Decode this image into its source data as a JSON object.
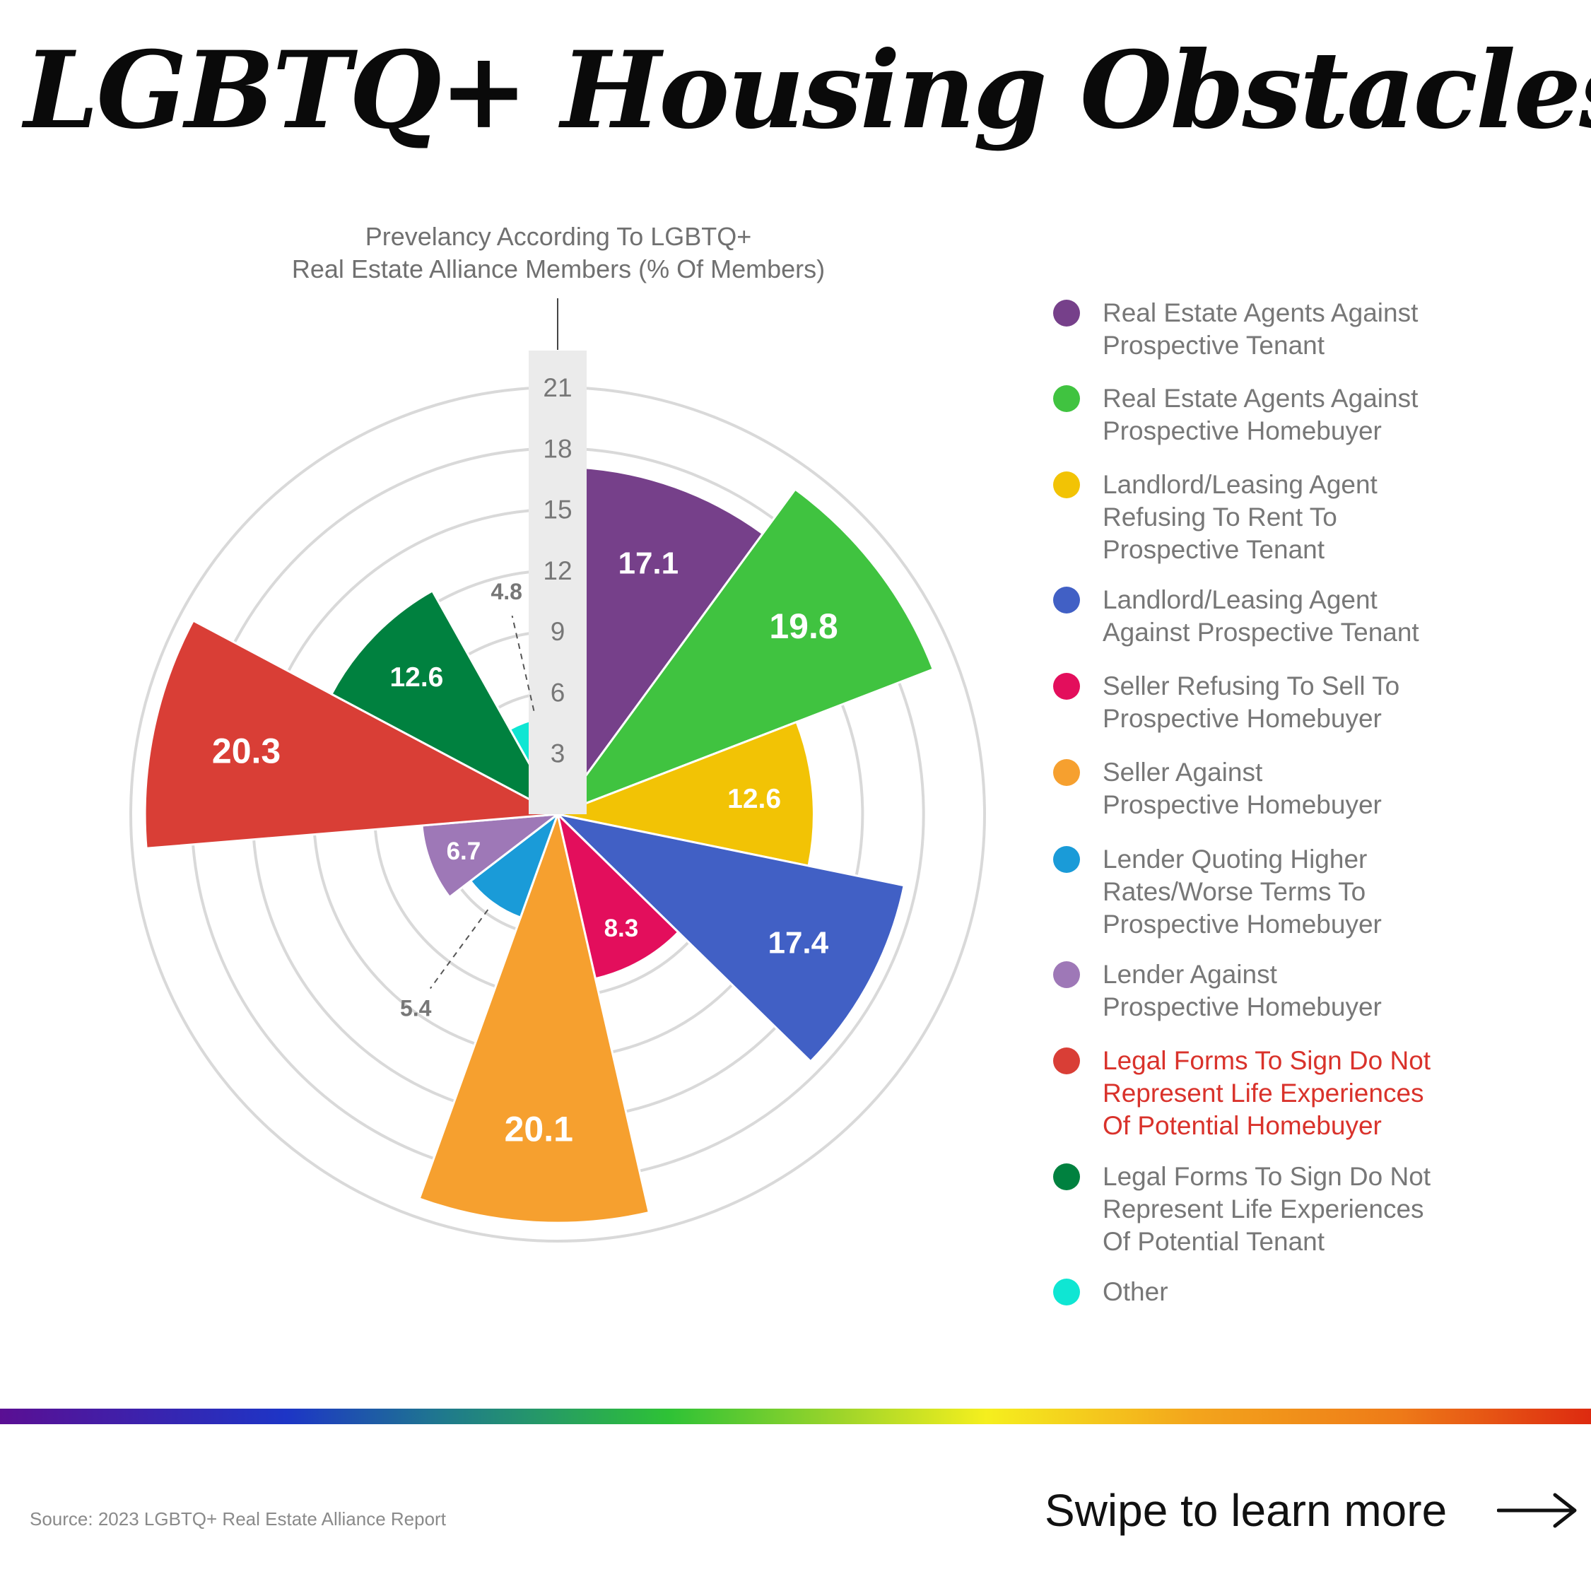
{
  "title": "LGBTQ+ Housing Obstacles",
  "source": "Source: 2023 LGBTQ+ Real Estate Alliance Report",
  "footer": {
    "swipe_text": "Swipe to learn more",
    "arrow_icon": "right-arrow-icon"
  },
  "colors": {
    "rainbow": [
      "#5a0f93",
      "#1d35c6",
      "#2ec236",
      "#f5ef1e",
      "#f3a51c",
      "#dd2a10"
    ],
    "grid": "#d9d9d9",
    "highlight": "#d9322b"
  },
  "chart_data": {
    "type": "polar-area",
    "axis_label_line1": "Prevelancy According To LGBTQ+",
    "axis_label_line2": "Real Estate Alliance Members (% Of Members)",
    "radial_ticks": [
      3,
      6,
      9,
      12,
      15,
      18,
      21
    ],
    "rlim": [
      0,
      21
    ],
    "grid": true,
    "legend_placement": "right",
    "series": [
      {
        "name": "Real Estate Agents Against\nProspective Tenant",
        "value": 17.1,
        "label": "17.1",
        "color": "#76408a"
      },
      {
        "name": "Real Estate Agents Against\nProspective Homebuyer",
        "value": 19.8,
        "label": "19.8",
        "color": "#40c340"
      },
      {
        "name": "Landlord/Leasing Agent\nRefusing To Rent To\nProspective Tenant",
        "value": 12.6,
        "label": "12.6",
        "color": "#f2c305"
      },
      {
        "name": "Landlord/Leasing Agent\nAgainst Prospective Tenant",
        "value": 17.4,
        "label": "17.4",
        "color": "#4160c5"
      },
      {
        "name": "Seller Refusing To Sell To\nProspective Homebuyer",
        "value": 8.3,
        "label": "8.3",
        "color": "#e30e5c"
      },
      {
        "name": "Seller Against\nProspective Homebuyer",
        "value": 20.1,
        "label": "20.1",
        "color": "#f6a02f"
      },
      {
        "name": "Lender Quoting Higher\nRates/Worse Terms To\nProspective Homebuyer",
        "value": 5.4,
        "label": "5.4",
        "color": "#1a9bd8"
      },
      {
        "name": "Lender Against\nProspective Homebuyer",
        "value": 6.7,
        "label": "6.7",
        "color": "#9e78b7"
      },
      {
        "name": "Legal Forms To Sign Do Not\nRepresent Life Experiences\nOf Potential Homebuyer",
        "value": 20.3,
        "label": "20.3",
        "color": "#d93e36",
        "highlight": true
      },
      {
        "name": "Legal Forms To Sign Do Not\nRepresent Life Experiences\nOf Potential Tenant",
        "value": 12.6,
        "label": "12.6",
        "color": "#00813f"
      },
      {
        "name": "Other",
        "value": 4.8,
        "label": "4.8",
        "color": "#0fe6d3"
      }
    ]
  }
}
